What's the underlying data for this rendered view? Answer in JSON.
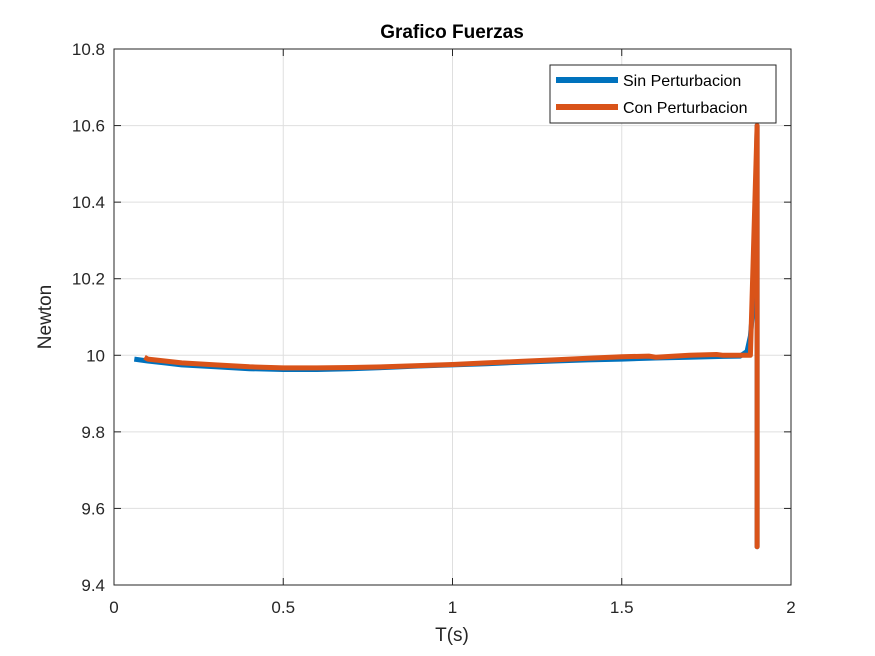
{
  "chart_data": {
    "type": "line",
    "title": "Grafico Fuerzas",
    "xlabel": "T(s)",
    "ylabel": "Newton",
    "xlim": [
      0,
      2
    ],
    "ylim": [
      9.4,
      10.8
    ],
    "xticks": [
      0,
      0.5,
      1,
      1.5,
      2
    ],
    "xtick_labels": [
      "0",
      "0.5",
      "1",
      "1.5",
      "2"
    ],
    "yticks": [
      9.4,
      9.6,
      9.8,
      10,
      10.2,
      10.4,
      10.6,
      10.8
    ],
    "ytick_labels": [
      "9.4",
      "9.6",
      "9.8",
      "10",
      "10.2",
      "10.4",
      "10.6",
      "10.8"
    ],
    "grid": true,
    "legend_position": "top-right",
    "series": [
      {
        "name": "Sin Perturbacion",
        "color": "#0072BD",
        "x": [
          0.06,
          0.1,
          0.15,
          0.2,
          0.3,
          0.4,
          0.5,
          0.6,
          0.7,
          0.8,
          0.9,
          1.0,
          1.1,
          1.2,
          1.3,
          1.4,
          1.5,
          1.6,
          1.7,
          1.8,
          1.85,
          1.87,
          1.88,
          1.89,
          1.895,
          1.9,
          1.9,
          1.9
        ],
        "y": [
          9.99,
          9.985,
          9.98,
          9.975,
          9.97,
          9.965,
          9.963,
          9.963,
          9.965,
          9.968,
          9.972,
          9.975,
          9.978,
          9.982,
          9.985,
          9.988,
          9.99,
          9.993,
          9.995,
          9.997,
          9.998,
          10.01,
          10.05,
          10.15,
          10.35,
          10.6,
          9.5,
          10.0
        ]
      },
      {
        "name": "Con Perturbacion",
        "color": "#D95319",
        "x": [
          0.09,
          0.1,
          0.15,
          0.2,
          0.3,
          0.4,
          0.5,
          0.6,
          0.7,
          0.8,
          0.9,
          1.0,
          1.1,
          1.2,
          1.3,
          1.4,
          1.5,
          1.58,
          1.6,
          1.7,
          1.78,
          1.8,
          1.85,
          1.88,
          1.9,
          1.9,
          1.9
        ],
        "y": [
          9.995,
          9.99,
          9.985,
          9.98,
          9.975,
          9.97,
          9.967,
          9.967,
          9.968,
          9.97,
          9.973,
          9.976,
          9.98,
          9.984,
          9.988,
          9.992,
          9.996,
          9.998,
          9.995,
          10.0,
          10.002,
          10.0,
          10.0,
          10.0,
          10.6,
          9.5,
          10.0
        ]
      }
    ]
  }
}
